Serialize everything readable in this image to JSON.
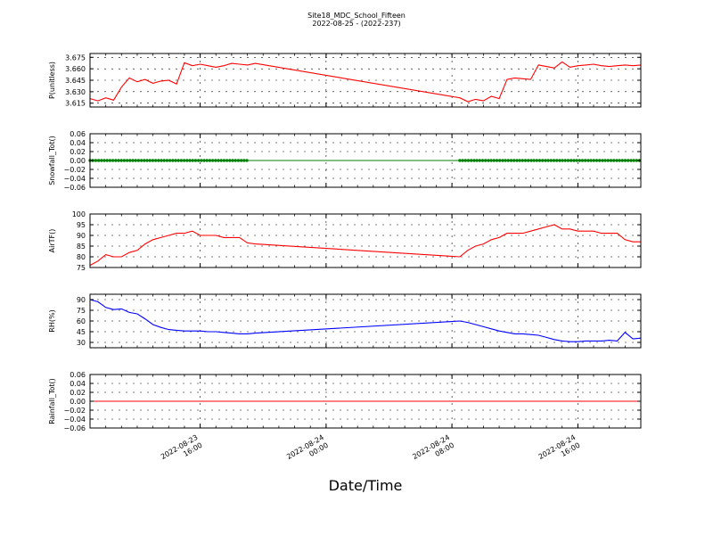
{
  "figure": {
    "title_line1": "Site18_MDC_School_Fifteen",
    "title_line2": "2022-08-25 - (2022-237)",
    "xlabel": "Date/Time"
  },
  "chart_data": [
    {
      "type": "line",
      "ylabel": "P(unitless)",
      "ylim": [
        3.61,
        3.68
      ],
      "yticks": [
        "3.615",
        "3.630",
        "3.645",
        "3.660",
        "3.675"
      ],
      "ytick_values": [
        3.615,
        3.63,
        3.645,
        3.66,
        3.675
      ],
      "grid": true,
      "series": [
        {
          "color": "#ff0000",
          "x": [
            "2022-08-23 09:00",
            "2022-08-23 09:30",
            "2022-08-23 10:00",
            "2022-08-23 10:30",
            "2022-08-23 11:00",
            "2022-08-23 11:30",
            "2022-08-23 12:00",
            "2022-08-23 12:30",
            "2022-08-23 13:00",
            "2022-08-23 13:30",
            "2022-08-23 14:00",
            "2022-08-23 14:30",
            "2022-08-23 15:00",
            "2022-08-23 15:30",
            "2022-08-23 16:00",
            "2022-08-23 16:30",
            "2022-08-23 17:00",
            "2022-08-23 17:30",
            "2022-08-23 18:00",
            "2022-08-23 18:30",
            "2022-08-23 19:00",
            "2022-08-23 19:30",
            "2022-08-24 08:30",
            "2022-08-24 09:00",
            "2022-08-24 09:30",
            "2022-08-24 10:00",
            "2022-08-24 10:30",
            "2022-08-24 11:00",
            "2022-08-24 11:30",
            "2022-08-24 12:00",
            "2022-08-24 12:30",
            "2022-08-24 13:00",
            "2022-08-24 13:30",
            "2022-08-24 14:00",
            "2022-08-24 14:30",
            "2022-08-24 15:00",
            "2022-08-24 15:30",
            "2022-08-24 16:00",
            "2022-08-24 16:30",
            "2022-08-24 17:00",
            "2022-08-24 17:30",
            "2022-08-24 18:00",
            "2022-08-24 18:30",
            "2022-08-24 19:00",
            "2022-08-24 19:30",
            "2022-08-24 20:00"
          ],
          "y": [
            3.621,
            3.618,
            3.622,
            3.619,
            3.636,
            3.648,
            3.643,
            3.646,
            3.641,
            3.644,
            3.645,
            3.64,
            3.668,
            3.664,
            3.666,
            3.664,
            3.662,
            3.664,
            3.667,
            3.666,
            3.665,
            3.667,
            3.622,
            3.617,
            3.62,
            3.618,
            3.624,
            3.621,
            3.646,
            3.648,
            3.647,
            3.646,
            3.665,
            3.663,
            3.661,
            3.669,
            3.662,
            3.664,
            3.665,
            3.666,
            3.664,
            3.663,
            3.664,
            3.665,
            3.664,
            3.665
          ]
        }
      ]
    },
    {
      "type": "line",
      "ylabel": "Snowfall_Tot()",
      "ylim": [
        -0.06,
        0.06
      ],
      "yticks": [
        "−0.06",
        "−0.04",
        "−0.02",
        "0.00",
        "0.02",
        "0.04",
        "0.06"
      ],
      "ytick_values": [
        -0.06,
        -0.04,
        -0.02,
        0.0,
        0.02,
        0.04,
        0.06
      ],
      "grid": true,
      "markers": "dots",
      "series": [
        {
          "color": "#008000",
          "x": [
            "2022-08-23 09:00",
            "2022-08-23 19:00",
            "2022-08-24 08:30",
            "2022-08-24 20:00"
          ],
          "y": [
            0,
            0,
            0,
            0
          ]
        }
      ]
    },
    {
      "type": "line",
      "ylabel": "AirTF()",
      "ylim": [
        75,
        100
      ],
      "yticks": [
        "75",
        "80",
        "85",
        "90",
        "95",
        "100"
      ],
      "ytick_values": [
        75,
        80,
        85,
        90,
        95,
        100
      ],
      "grid": true,
      "series": [
        {
          "color": "#ff0000",
          "x": [
            "2022-08-23 09:00",
            "2022-08-23 09:30",
            "2022-08-23 10:00",
            "2022-08-23 10:30",
            "2022-08-23 11:00",
            "2022-08-23 11:30",
            "2022-08-23 12:00",
            "2022-08-23 12:30",
            "2022-08-23 13:00",
            "2022-08-23 13:30",
            "2022-08-23 14:00",
            "2022-08-23 14:30",
            "2022-08-23 15:00",
            "2022-08-23 15:30",
            "2022-08-23 16:00",
            "2022-08-23 16:30",
            "2022-08-23 17:00",
            "2022-08-23 17:30",
            "2022-08-23 18:00",
            "2022-08-23 18:30",
            "2022-08-23 19:00",
            "2022-08-23 19:30",
            "2022-08-24 08:30",
            "2022-08-24 09:00",
            "2022-08-24 09:30",
            "2022-08-24 10:00",
            "2022-08-24 10:30",
            "2022-08-24 11:00",
            "2022-08-24 11:30",
            "2022-08-24 12:00",
            "2022-08-24 12:30",
            "2022-08-24 13:00",
            "2022-08-24 13:30",
            "2022-08-24 14:00",
            "2022-08-24 14:30",
            "2022-08-24 15:00",
            "2022-08-24 15:30",
            "2022-08-24 16:00",
            "2022-08-24 16:30",
            "2022-08-24 17:00",
            "2022-08-24 17:30",
            "2022-08-24 18:00",
            "2022-08-24 18:30",
            "2022-08-24 19:00",
            "2022-08-24 19:30",
            "2022-08-24 20:00"
          ],
          "y": [
            76,
            78,
            81,
            80,
            80,
            82,
            83,
            86,
            88,
            89,
            90,
            91,
            91,
            92,
            90,
            90,
            90,
            89,
            89,
            89,
            86.5,
            86,
            80,
            83,
            85,
            86,
            88,
            89,
            91,
            91,
            91,
            92,
            93,
            94,
            95,
            93,
            93,
            92,
            92,
            92,
            91,
            91,
            91,
            88,
            87,
            87
          ]
        }
      ]
    },
    {
      "type": "line",
      "ylabel": "RH(%)",
      "ylim": [
        22.5,
        97.5
      ],
      "yticks": [
        "30",
        "45",
        "60",
        "75",
        "90"
      ],
      "ytick_values": [
        30,
        45,
        60,
        75,
        90
      ],
      "grid": true,
      "series": [
        {
          "color": "#0000ff",
          "x": [
            "2022-08-23 09:00",
            "2022-08-23 09:30",
            "2022-08-23 10:00",
            "2022-08-23 10:30",
            "2022-08-23 11:00",
            "2022-08-23 11:30",
            "2022-08-23 12:00",
            "2022-08-23 12:30",
            "2022-08-23 13:00",
            "2022-08-23 13:30",
            "2022-08-23 14:00",
            "2022-08-23 14:30",
            "2022-08-23 15:00",
            "2022-08-23 15:30",
            "2022-08-23 16:00",
            "2022-08-23 16:30",
            "2022-08-23 17:00",
            "2022-08-23 17:30",
            "2022-08-23 18:00",
            "2022-08-23 18:30",
            "2022-08-23 19:00",
            "2022-08-23 19:30",
            "2022-08-24 08:30",
            "2022-08-24 09:00",
            "2022-08-24 09:30",
            "2022-08-24 10:00",
            "2022-08-24 10:30",
            "2022-08-24 11:00",
            "2022-08-24 11:30",
            "2022-08-24 12:00",
            "2022-08-24 12:30",
            "2022-08-24 13:00",
            "2022-08-24 13:30",
            "2022-08-24 14:00",
            "2022-08-24 14:30",
            "2022-08-24 15:00",
            "2022-08-24 15:30",
            "2022-08-24 16:00",
            "2022-08-24 16:30",
            "2022-08-24 17:00",
            "2022-08-24 17:30",
            "2022-08-24 18:00",
            "2022-08-24 18:30",
            "2022-08-24 19:00",
            "2022-08-24 19:30",
            "2022-08-24 20:00"
          ],
          "y": [
            90,
            87,
            79,
            76,
            77,
            72,
            70,
            63,
            55,
            51,
            48,
            47,
            46,
            46,
            46,
            45,
            45,
            44,
            43,
            42,
            42,
            43,
            60,
            58,
            55,
            52,
            49,
            46,
            44,
            42,
            42,
            41,
            40,
            37,
            34,
            32,
            31,
            31,
            32,
            32,
            32,
            33,
            32,
            44,
            35,
            36
          ]
        }
      ]
    },
    {
      "type": "line",
      "ylabel": "Rainfall_Tot()",
      "ylim": [
        -0.06,
        0.06
      ],
      "yticks": [
        "−0.06",
        "−0.04",
        "−0.02",
        "0.00",
        "0.02",
        "0.04",
        "0.06"
      ],
      "ytick_values": [
        -0.06,
        -0.04,
        -0.02,
        0.0,
        0.02,
        0.04,
        0.06
      ],
      "grid": true,
      "series": [
        {
          "color": "#ff0000",
          "x": [
            "2022-08-23 09:00",
            "2022-08-24 20:00"
          ],
          "y": [
            0,
            0
          ]
        }
      ]
    }
  ],
  "xaxis": {
    "start": "2022-08-23 09:00",
    "end": "2022-08-24 20:00",
    "ticks": [
      {
        "value": "2022-08-23 16:00",
        "line1": "2022-08-23",
        "line2": "16:00"
      },
      {
        "value": "2022-08-24 00:00",
        "line1": "2022-08-24",
        "line2": "00:00"
      },
      {
        "value": "2022-08-24 08:00",
        "line1": "2022-08-24",
        "line2": "08:00"
      },
      {
        "value": "2022-08-24 16:00",
        "line1": "2022-08-24",
        "line2": "16:00"
      }
    ]
  }
}
